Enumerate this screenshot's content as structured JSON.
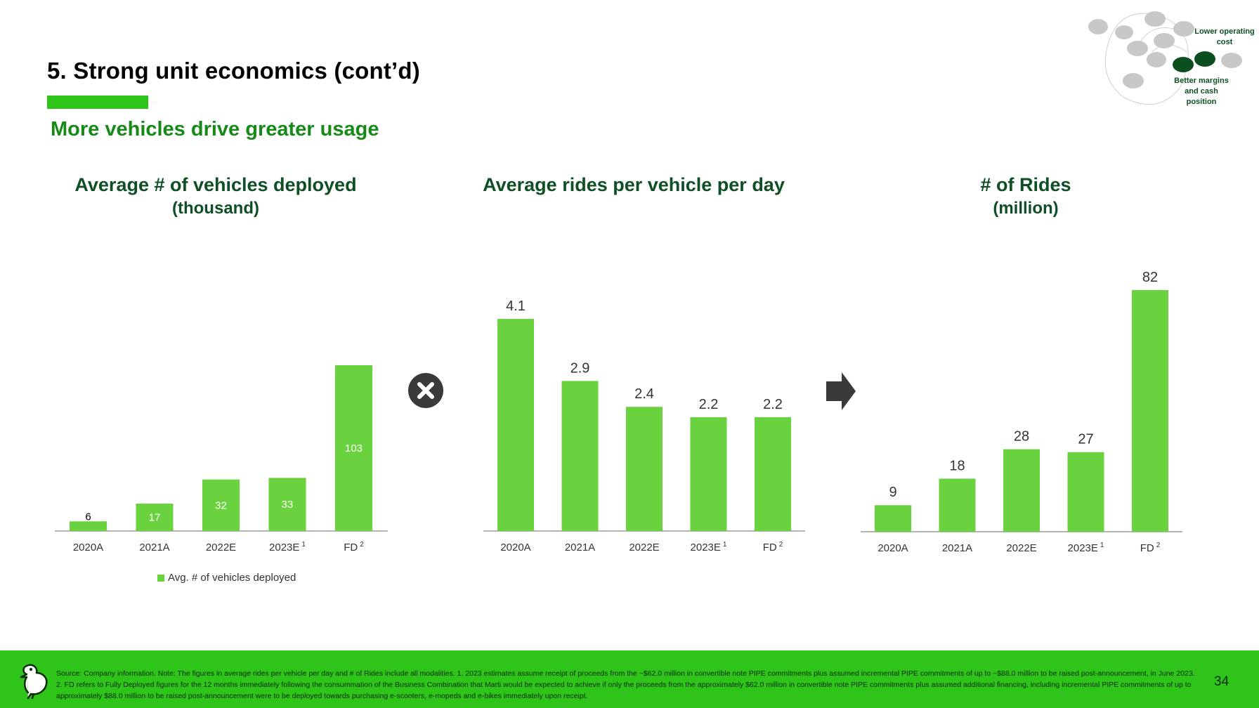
{
  "header": {
    "title": "5. Strong unit economics (cont’d)",
    "subtitle": "More vehicles drive greater usage"
  },
  "diagram": {
    "label_top": "Lower operating cost",
    "label_bottom": "Better margins and cash position"
  },
  "colors": {
    "bar": "#6ad23f",
    "accent": "#2ec419",
    "title_green": "#0f4f26",
    "subtitle_green": "#168a17"
  },
  "operators": {
    "multiply_icon": "close-circle-icon",
    "arrow_icon": "arrow-right-icon"
  },
  "charts": {
    "vehicles": {
      "title": "Average # of vehicles deployed",
      "unit": "(thousand)",
      "legend": "Avg. # of vehicles deployed"
    },
    "rides_per_vehicle": {
      "title": "Average rides per vehicle per day"
    },
    "rides": {
      "title": "# of Rides",
      "unit": "(million)"
    }
  },
  "chart_data": [
    {
      "type": "bar",
      "title": "Average # of vehicles deployed",
      "subtitle": "(thousand)",
      "categories": [
        "2020A",
        "2021A",
        "2022E",
        "2023E",
        "FD"
      ],
      "footnote_marks": [
        "",
        "",
        "",
        "1",
        "2"
      ],
      "values": [
        6,
        17,
        32,
        33,
        103
      ],
      "ylim": [
        0,
        110
      ],
      "legend": "Avg. # of vehicles deployed",
      "data_labels": "inside"
    },
    {
      "type": "bar",
      "title": "Average rides per vehicle per day",
      "categories": [
        "2020A",
        "2021A",
        "2022E",
        "2023E",
        "FD"
      ],
      "footnote_marks": [
        "",
        "",
        "",
        "1",
        "2"
      ],
      "values": [
        4.1,
        2.9,
        2.4,
        2.2,
        2.2
      ],
      "ylim": [
        0,
        5.5
      ],
      "data_labels": "above"
    },
    {
      "type": "bar",
      "title": "# of Rides",
      "subtitle": "(million)",
      "categories": [
        "2020A",
        "2021A",
        "2022E",
        "2023E",
        "FD"
      ],
      "footnote_marks": [
        "",
        "",
        "",
        "1",
        "2"
      ],
      "values": [
        9,
        18,
        28,
        27,
        82
      ],
      "ylim": [
        0,
        90
      ],
      "data_labels": "above"
    }
  ],
  "footer": {
    "source": "Source: Company information. Note: The figures in average rides per vehicle per day and # of Rides include all modalities. 1. 2023 estimates assume receipt of proceeds from the ~$62.0 million in convertible note PIPE commitments plus assumed incremental PIPE commitments of up to ~$88.0 million to be raised post-announcement, in June 2023. 2. FD refers to Fully Deployed figures for the 12 months immediately following the consummation of the Business Combination that Marti would be expected to achieve if only the proceeds from the approximately $62.0 million in convertible note PIPE commitments plus assumed additional financing, including incremental PIPE commitments of up to approximately $88.0 million to be raised post-announcement were to be deployed towards purchasing e-scooters, e-mopeds and e-bikes immediately upon receipt.",
    "page_number": "34"
  }
}
